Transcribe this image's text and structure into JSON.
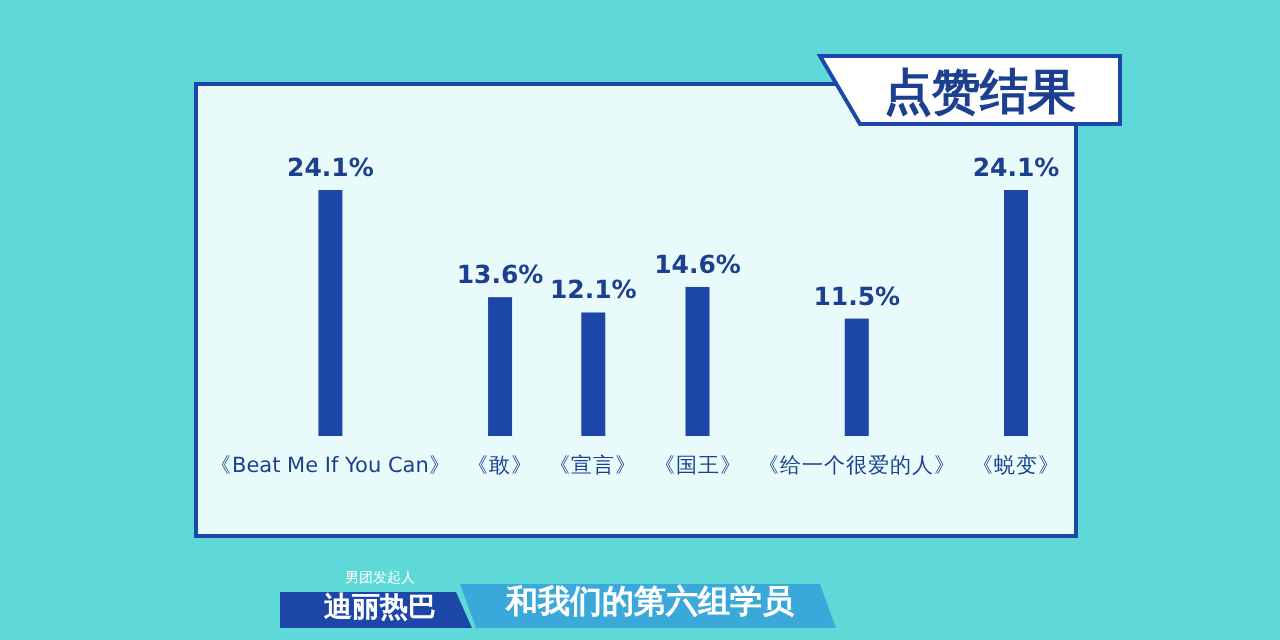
{
  "chart_data": {
    "type": "bar",
    "title": "点赞结果",
    "categories": [
      "《Beat Me If You Can》",
      "《敢》",
      "《宣言》",
      "《国王》",
      "《给一个很爱的人》",
      "《蜕变》"
    ],
    "values": [
      24.1,
      13.6,
      12.1,
      14.6,
      11.5,
      24.1
    ],
    "value_labels": [
      "24.1%",
      "13.6%",
      "12.1%",
      "14.6%",
      "11.5%",
      "24.1%"
    ],
    "color": "#1c47a8",
    "annotations": [
      "男团发起人",
      "迪丽热巴",
      "和我们的第六组学员"
    ]
  }
}
